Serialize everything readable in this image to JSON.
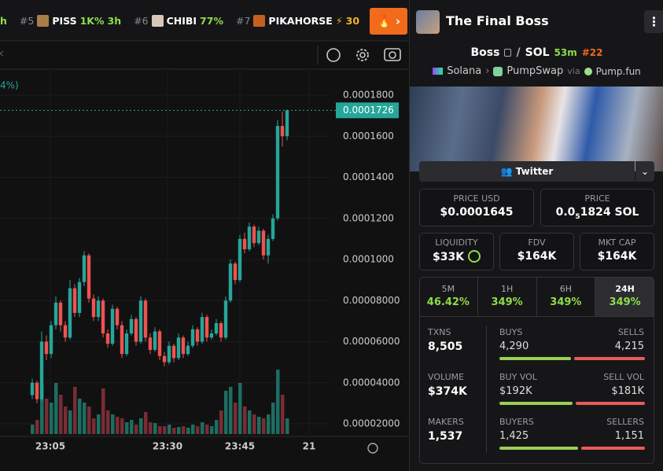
{
  "ticker": {
    "cut": "h",
    "items": [
      {
        "rank": "#5",
        "name": "PISS",
        "change": "1K%",
        "age": "3h"
      },
      {
        "rank": "#6",
        "name": "CHIBI",
        "change": "77%"
      },
      {
        "rank": "#7",
        "name": "PIKAHORSE",
        "boost": "30"
      }
    ]
  },
  "chart": {
    "change_fragment": "4%)",
    "yticks": [
      {
        "value": 0.00018,
        "label": "0.0001800"
      },
      {
        "value": 0.00016,
        "label": "0.0001600"
      },
      {
        "value": 0.00014,
        "label": "0.0001400"
      },
      {
        "value": 0.00012,
        "label": "0.0001200"
      },
      {
        "value": 0.0001,
        "label": "0.0001000"
      },
      {
        "value": 8e-05,
        "label": "0.00008000"
      },
      {
        "value": 6e-05,
        "label": "0.00006000"
      },
      {
        "value": 4e-05,
        "label": "0.00004000"
      },
      {
        "value": 2e-05,
        "label": "0.00002000"
      }
    ],
    "current_price": {
      "value": 0.0001726,
      "label": "0.0001726"
    },
    "time_labels": [
      "23:05",
      "23:30",
      "23:45",
      "21"
    ],
    "candles": [
      [
        3.4e-05,
        4.2e-05,
        3.2e-05,
        4e-05
      ],
      [
        4e-05,
        4.1e-05,
        3e-05,
        3.2e-05
      ],
      [
        3.2e-05,
        6.5e-05,
        3.1e-05,
        6e-05
      ],
      [
        6e-05,
        6.3e-05,
        5.1e-05,
        5.4e-05
      ],
      [
        5.4e-05,
        7e-05,
        5.2e-05,
        6.8e-05
      ],
      [
        6.8e-05,
        8.2e-05,
        6.6e-05,
        7.9e-05
      ],
      [
        7.9e-05,
        8e-05,
        6.5e-05,
        6.8e-05
      ],
      [
        6.8e-05,
        7e-05,
        6e-05,
        6.2e-05
      ],
      [
        6.2e-05,
        9e-05,
        6.1e-05,
        8.6e-05
      ],
      [
        8.6e-05,
        8.8e-05,
        7.2e-05,
        7.4e-05
      ],
      [
        7.4e-05,
        9.1e-05,
        7.2e-05,
        8.9e-05
      ],
      [
        8.9e-05,
        0.000104,
        8.7e-05,
        0.000102
      ],
      [
        0.000102,
        0.000103,
        7.9e-05,
        8.1e-05
      ],
      [
        8.1e-05,
        8.3e-05,
        7e-05,
        7.2e-05
      ],
      [
        7.2e-05,
        8.2e-05,
        7e-05,
        8e-05
      ],
      [
        8e-05,
        8.1e-05,
        6.2e-05,
        6.4e-05
      ],
      [
        6.4e-05,
        6.6e-05,
        5.7e-05,
        5.9e-05
      ],
      [
        5.9e-05,
        7.8e-05,
        5.8e-05,
        7.6e-05
      ],
      [
        7.6e-05,
        7.7e-05,
        6.6e-05,
        6.8e-05
      ],
      [
        6.8e-05,
        7e-05,
        5.2e-05,
        5.4e-05
      ],
      [
        5.4e-05,
        6.6e-05,
        5.3e-05,
        6.4e-05
      ],
      [
        6.4e-05,
        7.3e-05,
        6.3e-05,
        7.1e-05
      ],
      [
        7.1e-05,
        7.2e-05,
        5.8e-05,
        6e-05
      ],
      [
        6e-05,
        8.2e-05,
        5.9e-05,
        8e-05
      ],
      [
        8e-05,
        8.1e-05,
        6e-05,
        6.2e-05
      ],
      [
        6.2e-05,
        6.4e-05,
        5.4e-05,
        5.6e-05
      ],
      [
        5.6e-05,
        6.7e-05,
        5.5e-05,
        6.5e-05
      ],
      [
        6.5e-05,
        6.6e-05,
        5.1e-05,
        5.3e-05
      ],
      [
        5.3e-05,
        5.5e-05,
        4.8e-05,
        5e-05
      ],
      [
        5e-05,
        6e-05,
        4.9e-05,
        5.8e-05
      ],
      [
        5.8e-05,
        5.9e-05,
        5e-05,
        5.2e-05
      ],
      [
        5.2e-05,
        6.4e-05,
        5.1e-05,
        6.2e-05
      ],
      [
        6.2e-05,
        6.3e-05,
        5.2e-05,
        5.4e-05
      ],
      [
        5.4e-05,
        6e-05,
        5.3e-05,
        5.8e-05
      ],
      [
        5.8e-05,
        6.8e-05,
        5.7e-05,
        6.6e-05
      ],
      [
        6.6e-05,
        6.7e-05,
        5.8e-05,
        6e-05
      ],
      [
        6e-05,
        7.4e-05,
        5.9e-05,
        7.2e-05
      ],
      [
        7.2e-05,
        7.3e-05,
        6e-05,
        6.2e-05
      ],
      [
        6.2e-05,
        6.6e-05,
        6.1e-05,
        6.4e-05
      ],
      [
        6.4e-05,
        7.1e-05,
        6.3e-05,
        6.9e-05
      ],
      [
        6.9e-05,
        7e-05,
        6e-05,
        6.2e-05
      ],
      [
        6.2e-05,
        8.2e-05,
        6.1e-05,
        8e-05
      ],
      [
        8e-05,
        0.0001,
        7.9e-05,
        9.8e-05
      ],
      [
        9.8e-05,
        9.9e-05,
        8.8e-05,
        9e-05
      ],
      [
        9e-05,
        0.000112,
        8.9e-05,
        0.00011
      ],
      [
        0.00011,
        0.000113,
        0.000103,
        0.000105
      ],
      [
        0.000105,
        0.000118,
        0.000104,
        0.000116
      ],
      [
        0.000116,
        0.000117,
        0.000106,
        0.000108
      ],
      [
        0.000108,
        0.000116,
        0.000107,
        0.000114
      ],
      [
        0.000114,
        0.000115,
        0.0001,
        0.000102
      ],
      [
        0.000102,
        0.000112,
        9.8e-05,
        0.00011
      ],
      [
        0.00011,
        0.000122,
        0.000109,
        0.00012
      ],
      [
        0.00012,
        0.000168,
        0.000119,
        0.000165
      ],
      [
        0.000165,
        0.000172,
        0.000155,
        0.00016
      ],
      [
        0.00016,
        0.000173,
        0.000158,
        0.0001726
      ]
    ],
    "volume": [
      12,
      18,
      64,
      45,
      40,
      65,
      50,
      35,
      30,
      60,
      45,
      40,
      35,
      20,
      25,
      58,
      30,
      25,
      22,
      20,
      15,
      18,
      12,
      20,
      28,
      15,
      14,
      10,
      10,
      12,
      8,
      9,
      10,
      8,
      12,
      10,
      15,
      12,
      10,
      18,
      30,
      55,
      60,
      40,
      65,
      35,
      30,
      25,
      22,
      20,
      25,
      40,
      82,
      50,
      20
    ]
  },
  "pair": {
    "title": "The Final Boss",
    "base": "Boss",
    "quote": "SOL",
    "age": "53m",
    "rank": "#22",
    "chain": "Solana",
    "dex": "PumpSwap",
    "via": "via",
    "launchpad": "Pump.fun",
    "social": "Twitter"
  },
  "prices": {
    "usd_label": "PRICE USD",
    "usd": "$0.0001645",
    "native_label": "PRICE",
    "native_prefix": "0.0",
    "native_zeros": "5",
    "native_digits": "1824 SOL"
  },
  "metrics": [
    {
      "label": "LIQUIDITY",
      "value": "$33K"
    },
    {
      "label": "FDV",
      "value": "$164K"
    },
    {
      "label": "MKT CAP",
      "value": "$164K"
    }
  ],
  "tabs": {
    "selected": 3,
    "items": [
      {
        "label": "5M",
        "change": "46.42%"
      },
      {
        "label": "1H",
        "change": "349%"
      },
      {
        "label": "6H",
        "change": "349%"
      },
      {
        "label": "24H",
        "change": "349%"
      }
    ]
  },
  "stats": [
    {
      "label": "TXNS",
      "value": "8,505",
      "left_label": "BUYS",
      "left": {
        "value": 4290,
        "label": "4,290"
      },
      "right_label": "SELLS",
      "right": {
        "value": 4215,
        "label": "4,215"
      }
    },
    {
      "label": "VOLUME",
      "value": "$374K",
      "left_label": "BUY VOL",
      "left": {
        "value": 192000,
        "label": "$192K"
      },
      "right_label": "SELL VOL",
      "right": {
        "value": 181000,
        "label": "$181K"
      }
    },
    {
      "label": "MAKERS",
      "value": "1,537",
      "left_label": "BUYERS",
      "left": {
        "value": 1425,
        "label": "1,425"
      },
      "right_label": "SELLERS",
      "right": {
        "value": 1151,
        "label": "1,151"
      }
    }
  ]
}
